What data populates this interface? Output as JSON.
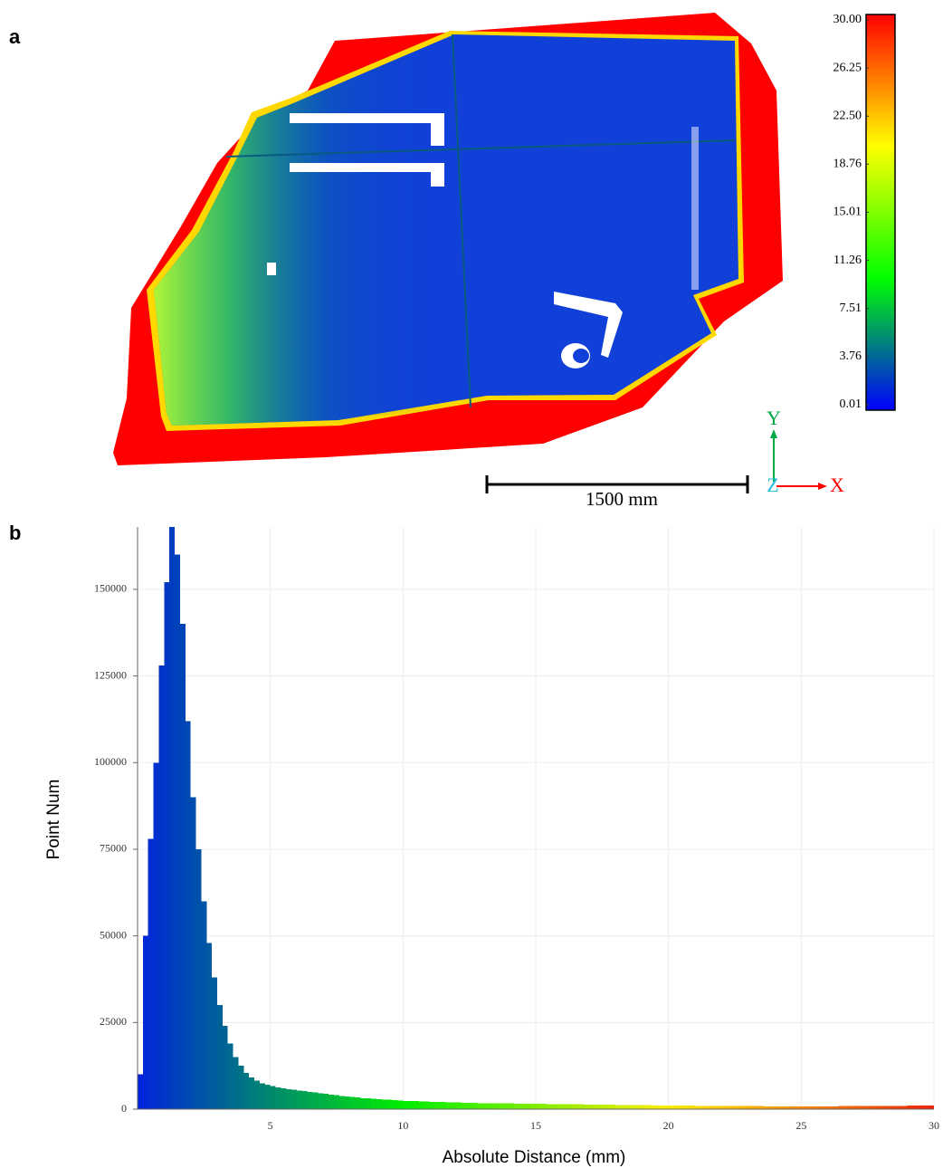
{
  "chart_data": [
    {
      "type": "colormap-image",
      "panel_label": "a",
      "clim": [
        0.01,
        30
      ],
      "cticks": [
        0.01,
        3.76,
        7.51,
        11.26,
        15.01,
        18.76,
        {
          "value": 22.5,
          "label": "22.50"
        },
        26.25,
        {
          "value": 30,
          "label": "30.00"
        }
      ],
      "colormap": [
        "#0000ff",
        "#00ff00",
        "#ffff00",
        "#ff0000"
      ],
      "scale_bar_label": "1500 mm",
      "axis_labels": {
        "y": "Y",
        "z": "Z",
        "x": "X"
      }
    },
    {
      "type": "histogram",
      "panel_label": "b",
      "xlabel": "Absolute Distance (mm)",
      "ylabel": "Point Num",
      "bins": [
        0,
        0.2,
        0.4,
        0.6,
        0.8,
        1,
        1.2,
        1.4,
        1.6,
        1.8,
        2,
        2.2,
        2.4,
        2.6,
        2.8,
        3,
        3.2,
        3.4,
        3.6,
        3.8,
        4,
        4.2,
        4.4,
        4.6,
        4.8,
        5,
        5.2,
        5.4,
        5.6,
        5.8,
        6,
        6.2,
        6.4,
        6.6,
        6.8,
        7,
        7.2,
        7.4,
        7.6,
        7.8,
        8,
        8.2,
        8.4,
        8.6,
        8.8,
        9,
        9.2,
        9.4,
        9.6,
        9.8,
        10,
        10.2,
        10.4,
        10.6,
        10.8,
        11,
        11.2,
        11.4,
        11.6,
        11.8,
        12,
        12.2,
        12.4,
        12.6,
        12.8,
        13,
        13.2,
        13.4,
        13.6,
        13.8,
        14,
        14.2,
        14.4,
        14.6,
        14.8,
        15,
        15.2,
        15.4,
        15.6,
        15.8,
        16,
        16.2,
        16.4,
        16.6,
        16.8,
        17,
        17.2,
        17.4,
        17.6,
        17.8,
        18,
        18.2,
        18.4,
        18.6,
        18.8,
        19,
        19.2,
        19.4,
        19.6,
        19.8,
        20,
        20.2,
        20.4,
        20.6,
        20.8,
        21,
        21.2,
        21.4,
        21.6,
        21.8,
        22,
        22.2,
        22.4,
        22.6,
        22.8,
        23,
        23.2,
        23.4,
        23.6,
        23.8,
        24,
        24.2,
        24.4,
        24.6,
        24.8,
        25,
        25.2,
        25.4,
        25.6,
        25.8,
        26,
        26.2,
        26.4,
        26.6,
        26.8,
        27,
        27.2,
        27.4,
        27.6,
        27.8,
        28,
        28.2,
        28.4,
        28.6,
        28.8,
        29,
        29.2,
        29.4,
        29.6,
        29.8,
        30
      ],
      "values": [
        10000,
        50000,
        78000,
        100000,
        128000,
        152000,
        168000,
        160000,
        140000,
        112000,
        90000,
        75000,
        60000,
        48000,
        38000,
        30000,
        24000,
        19000,
        15000,
        12500,
        10500,
        9200,
        8200,
        7500,
        7000,
        6600,
        6300,
        6000,
        5800,
        5600,
        5400,
        5200,
        5000,
        4800,
        4600,
        4400,
        4200,
        4000,
        3800,
        3650,
        3500,
        3350,
        3200,
        3100,
        3000,
        2900,
        2800,
        2700,
        2600,
        2500,
        2400,
        2350,
        2300,
        2250,
        2200,
        2150,
        2100,
        2050,
        2000,
        1950,
        1900,
        1850,
        1800,
        1780,
        1760,
        1740,
        1720,
        1700,
        1680,
        1660,
        1640,
        1620,
        1600,
        1580,
        1560,
        1540,
        1520,
        1500,
        1480,
        1460,
        1440,
        1420,
        1400,
        1380,
        1360,
        1340,
        1320,
        1300,
        1280,
        1260,
        1240,
        1220,
        1200,
        1180,
        1160,
        1140,
        1120,
        1100,
        1080,
        1060,
        1040,
        1020,
        1000,
        990,
        980,
        970,
        960,
        950,
        940,
        930,
        920,
        910,
        900,
        890,
        880,
        870,
        860,
        850,
        840,
        830,
        820,
        810,
        800,
        800,
        800,
        800,
        800,
        800,
        810,
        820,
        830,
        840,
        850,
        860,
        870,
        880,
        890,
        900,
        910,
        920,
        930,
        940,
        950,
        960,
        970,
        980,
        990,
        1000,
        1000,
        1000
      ],
      "xlim": [
        0,
        30
      ],
      "ylim": [
        0,
        168000
      ],
      "xticks": [
        5,
        10,
        15,
        20,
        25,
        30
      ],
      "yticks": [
        0,
        25000,
        50000,
        75000,
        100000,
        125000,
        150000
      ],
      "grid": true,
      "colormap": [
        "#0022dd",
        "#00ee00",
        "#ffee00",
        "#ee2200"
      ]
    }
  ]
}
